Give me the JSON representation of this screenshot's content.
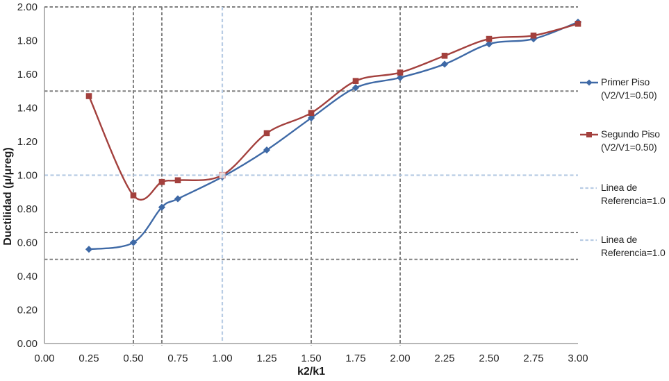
{
  "chart_data": {
    "type": "line",
    "title": "",
    "xlabel": "k2/k1",
    "ylabel": "Ductilidad (μ/μreg)",
    "xlim": [
      0.0,
      3.0
    ],
    "ylim": [
      0.0,
      2.0
    ],
    "grid": "off",
    "legend_position": "right",
    "axes": {
      "x_tick_labels": [
        "0.00",
        "0.25",
        "0.50",
        "0.75",
        "1.00",
        "1.25",
        "1.50",
        "1.75",
        "2.00",
        "2.25",
        "2.50",
        "2.75",
        "3.00"
      ],
      "x_tick_values": [
        0.0,
        0.25,
        0.5,
        0.75,
        1.0,
        1.25,
        1.5,
        1.75,
        2.0,
        2.25,
        2.5,
        2.75,
        3.0
      ],
      "y_tick_labels": [
        "0.00",
        "0.20",
        "0.40",
        "0.60",
        "0.80",
        "1.00",
        "1.20",
        "1.40",
        "1.60",
        "1.80",
        "2.00"
      ],
      "y_tick_values": [
        0.0,
        0.2,
        0.4,
        0.6,
        0.8,
        1.0,
        1.2,
        1.4,
        1.6,
        1.8,
        2.0
      ],
      "axis_line_color": "#8C8C8C"
    },
    "series": [
      {
        "name": "Primer Piso (V2/V1=0.50)",
        "color": "#3E69A6",
        "marker": "diamond",
        "smooth": true,
        "x": [
          0.25,
          0.5,
          0.66,
          0.75,
          1.0,
          1.25,
          1.5,
          1.75,
          2.0,
          2.25,
          2.5,
          2.75,
          3.0
        ],
        "y": [
          0.56,
          0.6,
          0.81,
          0.86,
          0.99,
          1.15,
          1.34,
          1.52,
          1.58,
          1.66,
          1.78,
          1.81,
          1.91
        ]
      },
      {
        "name": "Segundo Piso (V2/V1=0.50)",
        "color": "#A3403D",
        "marker": "square",
        "smooth": true,
        "x": [
          0.25,
          0.5,
          0.66,
          0.75,
          1.0,
          1.25,
          1.5,
          1.75,
          2.0,
          2.25,
          2.5,
          2.75,
          3.0
        ],
        "y": [
          1.47,
          0.88,
          0.96,
          0.97,
          1.0,
          1.25,
          1.37,
          1.56,
          1.61,
          1.71,
          1.81,
          1.83,
          1.9
        ]
      }
    ],
    "reference_lines": {
      "gray": {
        "color": "#7F7F7F",
        "style": "dashed",
        "horizontal": [
          0.5,
          0.66,
          1.5,
          2.0
        ],
        "vertical": [
          0.5,
          0.66,
          1.5,
          2.0
        ]
      },
      "light_blue": {
        "color": "#B8CCE4",
        "style": "dashed",
        "horizontal": [
          1.0
        ],
        "vertical": [
          1.0
        ]
      }
    },
    "intersection_marker": {
      "x": 1.0,
      "y": 1.0
    },
    "legend": {
      "entries": [
        {
          "line1": "Primer Piso",
          "line2": "(V2/V1=0.50)",
          "style": "line-diamond",
          "color_key": "series0"
        },
        {
          "line1": "Segundo Piso",
          "line2": "(V2/V1=0.50)",
          "style": "line-square",
          "color_key": "series1"
        },
        {
          "line1": "Linea de",
          "line2": "Referencia=1.0",
          "style": "dashes",
          "color_key": "reference"
        },
        {
          "line1": "Linea de",
          "line2": "Referencia=1.0",
          "style": "dashes",
          "color_key": "reference"
        }
      ]
    }
  }
}
